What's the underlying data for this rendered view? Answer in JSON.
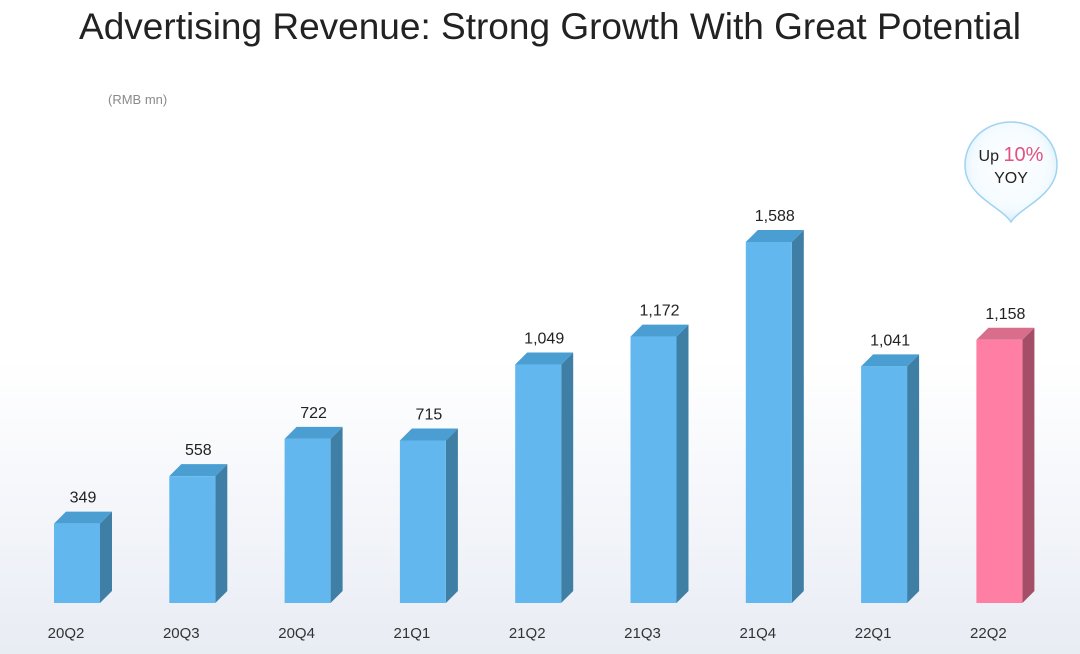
{
  "title": "Advertising Revenue:  Strong Growth With Great Potential",
  "unit_label": "(RMB mn)",
  "callout": {
    "prefix": "Up",
    "percent": "10%",
    "suffix": "YOY"
  },
  "colors": {
    "bar_front": "#62b8ee",
    "bar_top": "#4a9ed1",
    "bar_side": "#3f7fa6",
    "highlight_front": "#ff7ea4",
    "highlight_top": "#d86d8c",
    "highlight_side": "#a44e68",
    "callout_accent": "#e4507f"
  },
  "chart_data": {
    "type": "bar",
    "title": "Advertising Revenue:  Strong Growth With Great Potential",
    "ylabel": "(RMB mn)",
    "xlabel": "",
    "categories": [
      "20Q2",
      "20Q3",
      "20Q4",
      "21Q1",
      "21Q2",
      "21Q3",
      "21Q4",
      "22Q1",
      "22Q2"
    ],
    "values": [
      349,
      558,
      722,
      715,
      1049,
      1172,
      1588,
      1041,
      1158
    ],
    "value_labels": [
      "349",
      "558",
      "722",
      "715",
      "1,049",
      "1,172",
      "1,588",
      "1,041",
      "1,158"
    ],
    "highlight_index": 8,
    "ylim": [
      0,
      1588
    ],
    "grid": false,
    "legend": "none"
  }
}
